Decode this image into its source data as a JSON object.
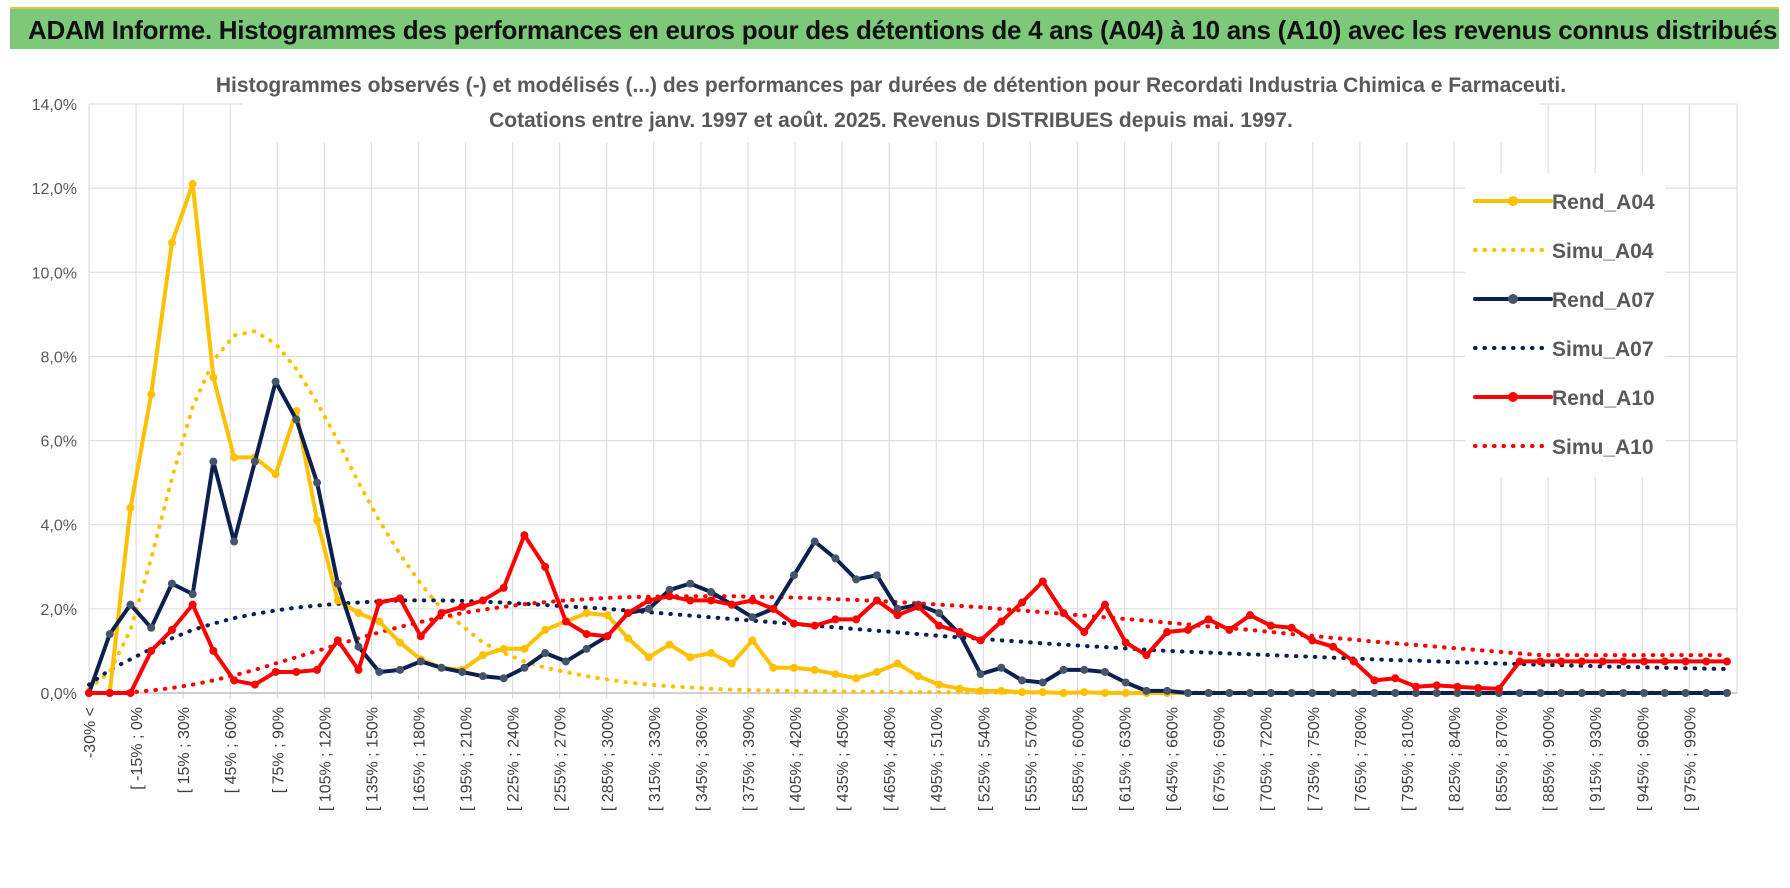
{
  "banner": {
    "title": "ADAM Informe. Histogrammes des performances en euros pour des détentions de 4 ans (A04) à 10 ans (A10) avec les revenus connus distribués"
  },
  "chart_data": {
    "type": "line",
    "title": "Histogrammes observés (-) et modélisés (...) des performances par durées de détention pour Recordati Industria Chimica e Farmaceuti.",
    "subtitle": "Cotations entre janv. 1997 et août. 2025. Revenus DISTRIBUES depuis mai. 1997.",
    "xlabel": "",
    "ylabel": "",
    "ylim": [
      0,
      14
    ],
    "y_ticks": [
      "0,0%",
      "2,0%",
      "4,0%",
      "6,0%",
      "8,0%",
      "10,0%",
      "12,0%",
      "14,0%"
    ],
    "grid": true,
    "legend_position": "right",
    "x_labels_shown": [
      "-30% <",
      "[ -15% ; 0%",
      "[ 15% ; 30%",
      "[ 45% ; 60%",
      "[ 75% ; 90%",
      "[ 105% ; 120%",
      "[ 135% ; 150%",
      "[ 165% ; 180%",
      "[ 195% ; 210%",
      "[ 225% ; 240%",
      "[ 255% ; 270%",
      "[ 285% ; 300%",
      "[ 315% ; 330%",
      "[ 345% ; 360%",
      "[ 375% ; 390%",
      "[ 405% ; 420%",
      "[ 435% ; 450%",
      "[ 465% ; 480%",
      "[ 495% ; 510%",
      "[ 525% ; 540%",
      "[ 555% ; 570%",
      "[ 585% ; 600%",
      "[ 615% ; 630%",
      "[ 645% ; 660%",
      "[ 675% ; 690%",
      "[ 705% ; 720%",
      "[ 735% ; 750%",
      "[ 765% ; 780%",
      "[ 795% ; 810%",
      "[ 825% ; 840%",
      "[ 855% ; 870%",
      "[ 885% ; 900%",
      "[ 915% ; 930%",
      "[ 945% ; 960%",
      "[ 975% ; 990%"
    ],
    "series": [
      {
        "name": "Rend_A04",
        "color": "#ffc000",
        "style": "solid",
        "markers": true,
        "values": [
          0.0,
          0.0,
          4.4,
          7.1,
          10.7,
          12.1,
          7.5,
          5.6,
          5.6,
          5.2,
          6.7,
          4.1,
          2.2,
          1.9,
          1.7,
          1.2,
          0.8,
          0.6,
          0.55,
          0.9,
          1.05,
          1.05,
          1.5,
          1.7,
          1.9,
          1.85,
          1.3,
          0.85,
          1.15,
          0.85,
          0.95,
          0.7,
          1.25,
          0.6,
          0.6,
          0.55,
          0.45,
          0.35,
          0.5,
          0.7,
          0.4,
          0.2,
          0.1,
          0.05,
          0.05,
          0.02,
          0.02,
          0.0,
          0.02,
          0.0,
          0.0,
          0.0,
          0.0,
          0.0,
          0.0,
          0.0,
          0.0,
          0.0,
          0.0,
          0.0,
          0.0,
          0.0,
          0.0,
          0.0,
          0.0,
          0.0,
          0.0,
          0.0,
          0.0,
          0.0,
          0.0,
          0.0,
          0.0,
          0.0,
          0.0,
          0.0,
          0.0,
          0.0,
          0.0,
          0.0
        ]
      },
      {
        "name": "Simu_A04",
        "color": "#ffc000",
        "style": "dotted",
        "markers": false,
        "values": [
          0.1,
          0.5,
          1.5,
          3.2,
          5.1,
          6.8,
          7.9,
          8.5,
          8.6,
          8.3,
          7.7,
          6.9,
          6.0,
          5.0,
          4.1,
          3.3,
          2.6,
          2.0,
          1.6,
          1.2,
          0.95,
          0.75,
          0.6,
          0.5,
          0.4,
          0.32,
          0.25,
          0.2,
          0.16,
          0.13,
          0.1,
          0.08,
          0.07,
          0.06,
          0.05,
          0.04,
          0.04,
          0.03,
          0.03,
          0.02,
          0.02,
          0.02,
          0.02,
          0.01,
          0.01,
          0.01,
          0.01,
          0.01,
          0.01,
          0.01,
          0.01,
          0.01,
          0.01,
          0.01,
          0.01,
          0.01,
          0.01,
          0.01,
          0.01,
          0.01,
          0.01,
          0.01,
          0.01,
          0.01,
          0.01,
          0.01,
          0.01,
          0.01,
          0.01,
          0.01,
          0.01,
          0.01,
          0.01,
          0.01,
          0.01,
          0.01,
          0.01,
          0.01,
          0.01,
          0.01
        ]
      },
      {
        "name": "Rend_A07",
        "color": "#0d2151",
        "style": "solid",
        "markers": true,
        "values": [
          0.0,
          1.4,
          2.1,
          1.55,
          2.6,
          2.35,
          5.5,
          3.6,
          5.5,
          7.4,
          6.5,
          5.0,
          2.6,
          1.1,
          0.5,
          0.55,
          0.75,
          0.6,
          0.5,
          0.4,
          0.35,
          0.6,
          0.95,
          0.75,
          1.05,
          1.35,
          1.9,
          2.0,
          2.45,
          2.6,
          2.4,
          2.1,
          1.8,
          2.0,
          2.8,
          3.6,
          3.2,
          2.7,
          2.8,
          2.0,
          2.1,
          1.9,
          1.4,
          0.45,
          0.6,
          0.3,
          0.25,
          0.55,
          0.55,
          0.5,
          0.25,
          0.05,
          0.05,
          0.0,
          0.0,
          0.0,
          0.0,
          0.0,
          0.0,
          0.0,
          0.0,
          0.0,
          0.0,
          0.0,
          0.0,
          0.0,
          0.0,
          0.0,
          0.0,
          0.0,
          0.0,
          0.0,
          0.0,
          0.0,
          0.0,
          0.0,
          0.0,
          0.0,
          0.0,
          0.0
        ]
      },
      {
        "name": "Simu_A07",
        "color": "#0d2151",
        "style": "dotted",
        "markers": false,
        "values": [
          0.2,
          0.55,
          0.8,
          1.05,
          1.3,
          1.5,
          1.65,
          1.78,
          1.88,
          1.96,
          2.03,
          2.08,
          2.12,
          2.15,
          2.18,
          2.2,
          2.2,
          2.2,
          2.19,
          2.17,
          2.15,
          2.12,
          2.09,
          2.06,
          2.03,
          2.0,
          1.96,
          1.92,
          1.88,
          1.84,
          1.8,
          1.76,
          1.72,
          1.68,
          1.64,
          1.6,
          1.56,
          1.52,
          1.48,
          1.44,
          1.4,
          1.36,
          1.32,
          1.29,
          1.25,
          1.22,
          1.18,
          1.15,
          1.12,
          1.09,
          1.06,
          1.03,
          1.0,
          0.98,
          0.96,
          0.94,
          0.92,
          0.9,
          0.88,
          0.86,
          0.84,
          0.82,
          0.8,
          0.78,
          0.77,
          0.75,
          0.73,
          0.72,
          0.7,
          0.69,
          0.67,
          0.66,
          0.65,
          0.63,
          0.62,
          0.61,
          0.6,
          0.59,
          0.58,
          0.57
        ]
      },
      {
        "name": "Rend_A10",
        "color": "#ff0000",
        "style": "solid",
        "markers": true,
        "values": [
          0.0,
          0.0,
          0.0,
          1.0,
          1.5,
          2.1,
          1.0,
          0.3,
          0.2,
          0.5,
          0.5,
          0.55,
          1.25,
          0.55,
          2.15,
          2.25,
          1.35,
          1.9,
          2.05,
          2.2,
          2.5,
          3.75,
          3.0,
          1.7,
          1.4,
          1.35,
          1.9,
          2.2,
          2.3,
          2.2,
          2.2,
          2.1,
          2.2,
          2.0,
          1.65,
          1.6,
          1.75,
          1.75,
          2.2,
          1.85,
          2.05,
          1.6,
          1.45,
          1.25,
          1.7,
          2.15,
          2.65,
          1.9,
          1.45,
          2.1,
          1.2,
          0.9,
          1.45,
          1.5,
          1.75,
          1.5,
          1.85,
          1.6,
          1.55,
          1.25,
          1.1,
          0.75,
          0.3,
          0.35,
          0.15,
          0.18,
          0.15,
          0.12,
          0.1,
          0.75,
          0.75,
          0.75,
          0.75,
          0.75,
          0.75,
          0.75,
          0.75,
          0.75,
          0.75,
          0.75
        ]
      },
      {
        "name": "Simu_A10",
        "color": "#ff0000",
        "style": "dotted",
        "markers": false,
        "values": [
          0.0,
          0.0,
          0.02,
          0.06,
          0.12,
          0.2,
          0.3,
          0.42,
          0.55,
          0.7,
          0.85,
          1.0,
          1.15,
          1.3,
          1.44,
          1.57,
          1.69,
          1.8,
          1.9,
          1.98,
          2.05,
          2.11,
          2.16,
          2.2,
          2.23,
          2.26,
          2.28,
          2.29,
          2.3,
          2.3,
          2.3,
          2.3,
          2.29,
          2.28,
          2.27,
          2.25,
          2.23,
          2.21,
          2.19,
          2.16,
          2.13,
          2.1,
          2.07,
          2.04,
          2.0,
          1.96,
          1.92,
          1.88,
          1.84,
          1.8,
          1.76,
          1.72,
          1.67,
          1.63,
          1.58,
          1.54,
          1.5,
          1.45,
          1.4,
          1.36,
          1.31,
          1.27,
          1.22,
          1.18,
          1.14,
          1.1,
          1.06,
          1.02,
          0.98,
          0.94,
          0.9,
          0.9,
          0.9,
          0.9,
          0.9,
          0.9,
          0.9,
          0.9,
          0.9,
          0.9
        ]
      }
    ]
  }
}
